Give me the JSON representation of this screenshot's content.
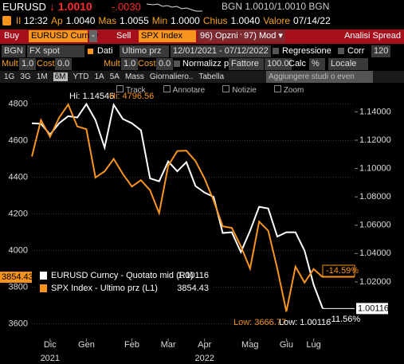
{
  "header": {
    "ticker": "EURUSD",
    "last": "↓ 1.0010",
    "change": "-.0030",
    "bid_ask": "BGN 1.0010/1.0010 BGN",
    "stats": [
      {
        "label": "Il",
        "value": "12:32"
      },
      {
        "label": "Ap",
        "value": "1.0040"
      },
      {
        "label": "Mas",
        "value": "1.0055"
      },
      {
        "label": "Min",
        "value": "1.0000"
      },
      {
        "label": "Chius",
        "value": "1.0040"
      },
      {
        "label": "Valore",
        "value": "07/14/22"
      }
    ]
  },
  "toolbar": {
    "buy": "Buy",
    "buy_security": "EURUSD Curncy",
    "dash": "-",
    "sell": "Sell",
    "sell_security": "SPX Index",
    "options": "96) Opzni ▾",
    "mod": "97) Mod ▾",
    "title": "Analisi Spread"
  },
  "settings": {
    "source": "BGN",
    "source_type": "FX spot",
    "data_label": "Dati",
    "data_field": "Ultimo prz",
    "start": "12/01/2021",
    "end": "- 07/12/2022",
    "regression": "Regressione",
    "corr": "Corr",
    "corr_window": "120"
  },
  "factors": {
    "mult_1": "Mult",
    "mult_1_value": "1.0",
    "cost_1": "Cost",
    "cost_1_value": "0.0",
    "mult_2": "Mult",
    "mult_2_value": "1.0",
    "cost_2": "Cost",
    "cost_2_value": "0.0",
    "normalize": "Normalizz p/",
    "normalize_by": "Fattore",
    "factor": "100.0",
    "calc": "Calc",
    "calc_value": "%",
    "currency": "Locale"
  },
  "periods": {
    "tabs": [
      "1G",
      "3G",
      "1M",
      "6M",
      "YTD",
      "1A",
      "5A",
      "Mass",
      "Giornaliero..",
      "Tabella"
    ],
    "studies": "Aggiungere studi o even"
  },
  "chart_tools": [
    "Track",
    "Annotare",
    "Notizie",
    "Zoom"
  ],
  "chart_data": {
    "type": "line",
    "categories": [
      null,
      null,
      "Dic",
      null,
      null,
      null,
      "Gen",
      null,
      null,
      null,
      null,
      "Feb",
      null,
      null,
      null,
      "Mar",
      null,
      null,
      null,
      "Apr",
      null,
      null,
      null,
      null,
      "Mag",
      null,
      null,
      null,
      "Giu",
      null,
      null,
      "Lug",
      null
    ],
    "x_groups": [
      "2021",
      "2022"
    ],
    "series": [
      {
        "name": "EURUSD Curncy - Quotato mid (R1)",
        "color": "#ffffff",
        "axis": "y2",
        "values": [
          1.132,
          1.1316,
          1.124,
          1.132,
          1.137,
          1.136,
          1.14546,
          1.1343,
          1.1148,
          1.145,
          1.135,
          1.132,
          1.127,
          1.093,
          1.091,
          1.105,
          1.098,
          1.1045,
          1.0877,
          1.083,
          1.08,
          1.0545,
          1.055,
          1.041,
          1.056,
          1.073,
          1.0718,
          1.052,
          1.055,
          1.055,
          1.042,
          1.018,
          1.00116
        ]
      },
      {
        "name": "SPX Index - Ultimo prz (L1)",
        "color": "#f7941d",
        "values": [
          4513,
          4712,
          4620,
          4725,
          4796.56,
          4677,
          4662,
          4398,
          4432,
          4500,
          4418,
          4349,
          4384,
          4329,
          4204,
          4463,
          4543,
          4545,
          4488,
          4393,
          4272,
          4132,
          4123,
          4023,
          3901,
          4158,
          4108,
          3901,
          3666.77,
          3912,
          3825,
          3899,
          3854.43
        ]
      }
    ],
    "ylim": [
      3520,
      4880
    ],
    "yticks": [
      3600,
      3800,
      4000,
      4200,
      4400,
      4600,
      4800
    ],
    "y2lim": [
      0.98,
      1.156
    ],
    "y2ticks": [
      {
        "value": 1.02,
        "label": "1.02000"
      },
      {
        "value": 1.04,
        "label": "1.04000"
      },
      {
        "value": 1.06,
        "label": "1.06000"
      },
      {
        "value": 1.08,
        "label": "1.08000"
      },
      {
        "value": 1.1,
        "label": "1.10000"
      },
      {
        "value": 1.12,
        "label": "1.12000"
      },
      {
        "value": 1.14,
        "label": "1.14000"
      }
    ],
    "grid": true,
    "annotations": {
      "eur_high": "Hi: 1.14546",
      "spx_high": "Hi: 4796.56",
      "spx_low": "Low: 3666.77",
      "eur_low": "Low: 1.00116",
      "spx_change": "-14.59%",
      "eur_change": "-11.56%"
    }
  }
}
